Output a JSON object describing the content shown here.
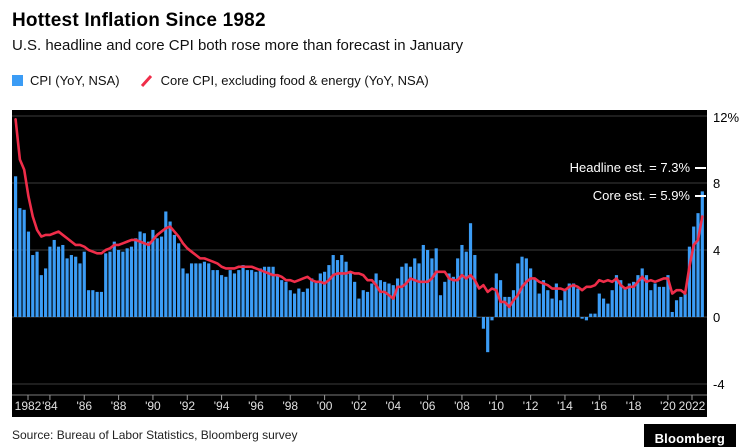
{
  "header": {
    "title": "Hottest Inflation Since 1982",
    "subtitle": "U.S. headline and core CPI both rose more than forecast in January"
  },
  "legend": [
    {
      "label": "CPI (YoY, NSA)",
      "marker": "square",
      "color": "#3B9CF5"
    },
    {
      "label": "Core CPI, excluding food & energy (YoY, NSA)",
      "marker": "slash",
      "color": "#EF2D49"
    }
  ],
  "annotations": [
    {
      "text": "Headline est. = 7.3%",
      "value": 7.3
    },
    {
      "text": "Core est. = 5.9%",
      "value": 5.9
    }
  ],
  "footer": {
    "source": "Source: Bureau of Labor Statistics, Bloomberg survey",
    "logo": "Bloomberg"
  },
  "chart_data": {
    "type": "bar",
    "x_start_year": 1982,
    "points_per_year": 4,
    "x_tick_labels": [
      "1982",
      "'84",
      "'86",
      "'88",
      "'90",
      "'92",
      "'94",
      "'96",
      "'98",
      "'00",
      "'02",
      "'04",
      "'06",
      "'08",
      "'10",
      "'12",
      "'14",
      "'16",
      "'18",
      "'20",
      "2022"
    ],
    "ylim": [
      -5,
      12
    ],
    "yticks": [
      {
        "v": 12,
        "label": "12%"
      },
      {
        "v": 8,
        "label": "8"
      },
      {
        "v": 4,
        "label": "4"
      },
      {
        "v": 0,
        "label": "0"
      },
      {
        "v": -4,
        "label": "-4"
      }
    ],
    "grid": true,
    "legend_position": "top-left",
    "background": "#000000",
    "series": [
      {
        "name": "CPI (YoY, NSA)",
        "type": "bar",
        "color": "#3B9CF5",
        "values": [
          8.4,
          6.5,
          6.4,
          5.1,
          3.7,
          3.9,
          2.5,
          2.9,
          4.2,
          4.6,
          4.2,
          4.3,
          3.5,
          3.7,
          3.6,
          3.2,
          3.9,
          1.6,
          1.6,
          1.5,
          1.5,
          3.8,
          3.9,
          4.5,
          4.0,
          3.9,
          4.1,
          4.2,
          4.7,
          5.1,
          5.0,
          4.5,
          5.2,
          4.7,
          4.8,
          6.3,
          5.7,
          4.9,
          4.4,
          2.9,
          2.6,
          3.2,
          3.2,
          3.2,
          3.3,
          3.2,
          2.8,
          2.8,
          2.5,
          2.4,
          2.8,
          2.6,
          2.8,
          3.1,
          2.8,
          2.8,
          2.7,
          2.9,
          3.0,
          3.0,
          3.0,
          2.5,
          2.2,
          2.1,
          1.6,
          1.4,
          1.7,
          1.5,
          1.7,
          2.3,
          2.1,
          2.6,
          2.7,
          3.1,
          3.7,
          3.4,
          3.7,
          3.3,
          2.7,
          2.1,
          1.1,
          1.6,
          1.5,
          2.0,
          2.6,
          2.2,
          2.1,
          2.0,
          1.9,
          2.3,
          3.0,
          3.2,
          3.0,
          3.5,
          3.2,
          4.3,
          4.0,
          3.5,
          4.1,
          1.3,
          2.1,
          2.6,
          2.4,
          3.5,
          4.3,
          3.9,
          5.6,
          3.7,
          0.0,
          -0.7,
          -2.1,
          -0.2,
          2.6,
          2.2,
          1.2,
          1.2,
          1.6,
          3.2,
          3.6,
          3.5,
          2.9,
          2.3,
          1.4,
          2.2,
          1.6,
          1.1,
          2.0,
          1.0,
          1.6,
          2.0,
          2.0,
          1.7,
          -0.1,
          -0.2,
          0.2,
          0.2,
          1.4,
          1.1,
          0.8,
          1.6,
          2.5,
          2.2,
          1.7,
          2.0,
          2.1,
          2.5,
          2.9,
          2.5,
          1.6,
          2.0,
          1.8,
          1.8,
          2.5,
          0.3,
          1.0,
          1.2,
          1.4,
          4.2,
          5.4,
          6.2,
          7.5
        ]
      },
      {
        "name": "Core CPI, excluding food & energy (YoY, NSA)",
        "type": "line",
        "color": "#EF2D49",
        "values": [
          11.8,
          9.4,
          8.8,
          7.2,
          6.0,
          5.2,
          4.8,
          4.9,
          4.9,
          5.0,
          5.1,
          4.9,
          4.7,
          4.5,
          4.3,
          4.3,
          4.2,
          4.0,
          3.9,
          3.8,
          3.8,
          4.0,
          4.1,
          4.3,
          4.3,
          4.4,
          4.5,
          4.6,
          4.6,
          4.5,
          4.4,
          4.3,
          4.6,
          4.9,
          5.1,
          5.3,
          5.4,
          5.1,
          4.8,
          4.4,
          4.1,
          3.9,
          3.7,
          3.5,
          3.5,
          3.4,
          3.3,
          3.2,
          3.0,
          2.9,
          2.9,
          2.9,
          3.0,
          3.0,
          3.0,
          3.0,
          2.9,
          2.8,
          2.7,
          2.6,
          2.5,
          2.5,
          2.4,
          2.2,
          2.2,
          2.1,
          2.2,
          2.3,
          2.4,
          2.2,
          2.1,
          2.1,
          2.0,
          2.2,
          2.5,
          2.6,
          2.6,
          2.6,
          2.7,
          2.6,
          2.6,
          2.5,
          2.2,
          2.2,
          1.9,
          1.5,
          1.5,
          1.3,
          1.1,
          1.8,
          1.8,
          2.0,
          2.3,
          2.2,
          2.1,
          2.1,
          2.1,
          2.3,
          2.7,
          2.7,
          2.7,
          2.3,
          2.2,
          2.2,
          2.5,
          2.3,
          2.5,
          2.2,
          1.7,
          1.9,
          1.5,
          1.7,
          1.6,
          0.9,
          0.9,
          0.6,
          1.0,
          1.3,
          1.8,
          2.1,
          2.3,
          2.3,
          2.1,
          2.0,
          1.9,
          1.7,
          1.7,
          1.7,
          1.6,
          1.8,
          1.9,
          1.8,
          1.6,
          1.8,
          1.8,
          1.9,
          2.2,
          2.1,
          2.2,
          2.1,
          2.3,
          1.9,
          1.7,
          1.8,
          1.8,
          2.1,
          2.4,
          2.1,
          2.2,
          2.1,
          2.2,
          2.3,
          2.3,
          1.4,
          1.6,
          1.6,
          1.4,
          3.0,
          4.3,
          4.6,
          6.0
        ]
      }
    ]
  }
}
